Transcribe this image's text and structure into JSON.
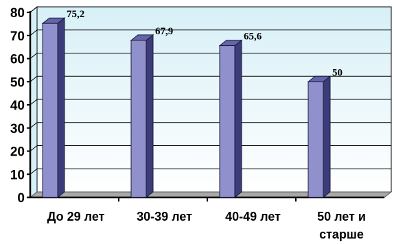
{
  "chart_data": {
    "type": "bar",
    "title": "",
    "xlabel": "",
    "ylabel": "",
    "categories": [
      [
        "До 29 лет"
      ],
      [
        "30-39 лет"
      ],
      [
        "40-49 лет"
      ],
      [
        "50 лет и",
        "старше"
      ]
    ],
    "values": [
      75.2,
      67.9,
      65.6,
      50
    ],
    "data_labels": [
      "75,2",
      "67,9",
      "65,6",
      "50"
    ],
    "ylim": [
      0,
      80
    ],
    "yticks": [
      0,
      10,
      20,
      30,
      40,
      50,
      60,
      70,
      80
    ],
    "grid": true,
    "legend": "none",
    "colors": {
      "bar_front": "#9090cc",
      "bar_side": "#3c3c7a",
      "bar_top": "#6464a8",
      "bar_outline": "#1a1a3a",
      "wall_top": "#d7f0f7",
      "wall_bottom": "#ffffff",
      "grid": "#000000",
      "floor": "#a8a8a8"
    }
  }
}
